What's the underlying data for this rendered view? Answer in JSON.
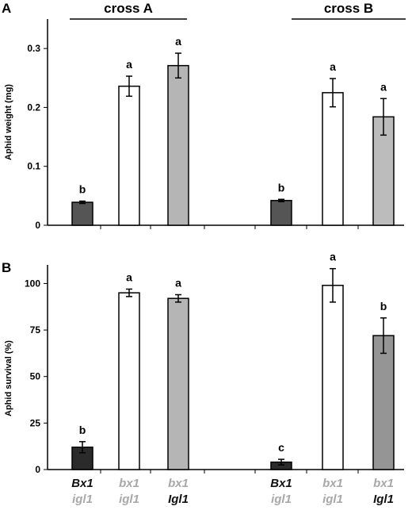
{
  "panel_letters": [
    "A",
    "B"
  ],
  "crosses": [
    "cross A",
    "cross B"
  ],
  "genotypes": [
    {
      "top": "Bx1",
      "bottom": "igl1",
      "top_style": "dark",
      "bottom_style": "light"
    },
    {
      "top": "bx1",
      "bottom": "igl1",
      "top_style": "light",
      "bottom_style": "light"
    },
    {
      "top": "bx1",
      "bottom": "Igl1",
      "top_style": "light",
      "bottom_style": "dark"
    },
    {
      "top": "Bx1",
      "bottom": "igl1",
      "top_style": "dark",
      "bottom_style": "light"
    },
    {
      "top": "bx1",
      "bottom": "igl1",
      "top_style": "light",
      "bottom_style": "light"
    },
    {
      "top": "bx1",
      "bottom": "Igl1",
      "top_style": "light",
      "bottom_style": "dark"
    }
  ],
  "chart_data": [
    {
      "type": "bar",
      "panel": "A",
      "ylabel": "Aphid weight (mg)",
      "ylim": [
        0,
        0.35
      ],
      "yticks": [
        0,
        0.1,
        0.2,
        0.3
      ],
      "ytick_labels": [
        "0",
        "0.1",
        "0.2",
        "0.3"
      ],
      "values": [
        0.039,
        0.236,
        0.271,
        0.042,
        0.225,
        0.184
      ],
      "errors": [
        0.002,
        0.017,
        0.021,
        0.002,
        0.024,
        0.031
      ],
      "letters": [
        "b",
        "a",
        "a",
        "b",
        "a",
        "a"
      ],
      "colors": [
        "#555555",
        "#ffffff",
        "#b5b5b5",
        "#555555",
        "#ffffff",
        "#bcbcbc"
      ]
    },
    {
      "type": "bar",
      "panel": "B",
      "ylabel": "Aphid survival (%)",
      "ylim": [
        0,
        110
      ],
      "yticks": [
        0,
        25,
        50,
        75,
        100
      ],
      "ytick_labels": [
        "0",
        "25",
        "50",
        "75",
        "100"
      ],
      "values": [
        12,
        95,
        92,
        4,
        99,
        72
      ],
      "errors": [
        3,
        2,
        2,
        1.5,
        9,
        9.5
      ],
      "letters": [
        "b",
        "a",
        "a",
        "c",
        "a",
        "b"
      ],
      "colors": [
        "#2b2b2b",
        "#ffffff",
        "#b5b5b5",
        "#2b2b2b",
        "#ffffff",
        "#959595"
      ]
    }
  ]
}
